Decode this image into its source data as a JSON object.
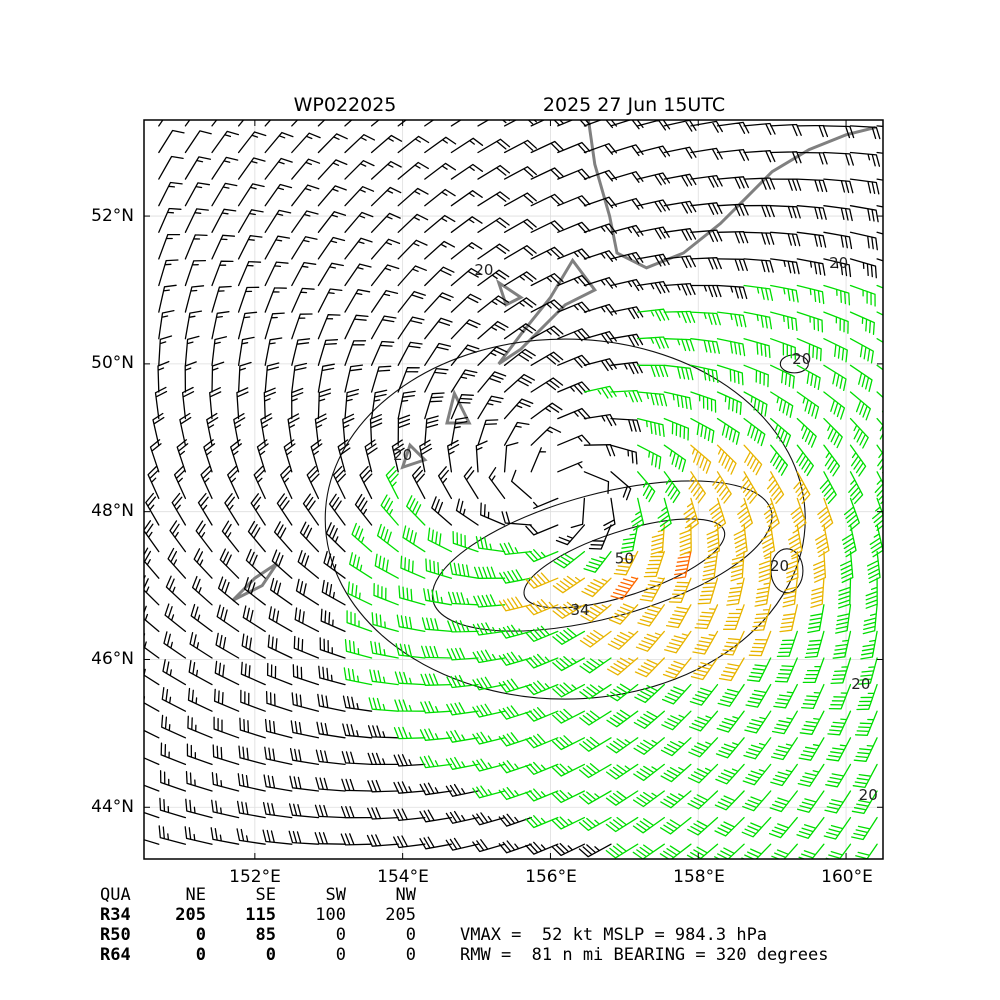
{
  "chart_data": {
    "type": "wind-barb map",
    "title_left": "WP022025",
    "title_right": "2025 27 Jun 15UTC",
    "lon_ticks": [
      "152°E",
      "154°E",
      "156°E",
      "158°E",
      "160°E"
    ],
    "lat_ticks": [
      "44°N",
      "46°N",
      "48°N",
      "50°N",
      "52°N"
    ],
    "lon_values": [
      152,
      154,
      156,
      158,
      160
    ],
    "lat_values": [
      44,
      46,
      48,
      50,
      52
    ],
    "lon_range": [
      150.5,
      160.5
    ],
    "lat_range": [
      43.3,
      53.3
    ],
    "grid": true,
    "center": {
      "lon": 156.1,
      "lat": 48.3
    },
    "barb_colors": {
      "below_34": "#000000",
      "r34": "#00dd00",
      "r50": "#e8b400",
      "r64": "#ff6a00"
    },
    "coast_color": "#808080",
    "contour_labels": [
      {
        "text": "20",
        "lon": 154.0,
        "lat": 48.7
      },
      {
        "text": "20",
        "lon": 155.1,
        "lat": 51.2
      },
      {
        "text": "20",
        "lon": 159.9,
        "lat": 51.3
      },
      {
        "text": "20",
        "lon": 159.4,
        "lat": 50.0
      },
      {
        "text": "20",
        "lon": 159.1,
        "lat": 47.2
      },
      {
        "text": "20",
        "lon": 160.2,
        "lat": 45.6
      },
      {
        "text": "20",
        "lon": 160.3,
        "lat": 44.1
      },
      {
        "text": "34",
        "lon": 156.4,
        "lat": 46.6
      },
      {
        "text": "50",
        "lon": 157.0,
        "lat": 47.3
      }
    ]
  },
  "table": {
    "header": [
      "QUA",
      "NE",
      "SE",
      "SW",
      "NW"
    ],
    "rows": [
      [
        "R34",
        "205",
        "115",
        "100",
        "205"
      ],
      [
        "R50",
        "0",
        "85",
        "0",
        "0"
      ],
      [
        "R64",
        "0",
        "0",
        "0",
        "0"
      ]
    ]
  },
  "stats": {
    "line1": "VMAX =  52 kt MSLP = 984.3 hPa",
    "line2": "RMW =  81 n mi BEARING = 320 degrees"
  }
}
